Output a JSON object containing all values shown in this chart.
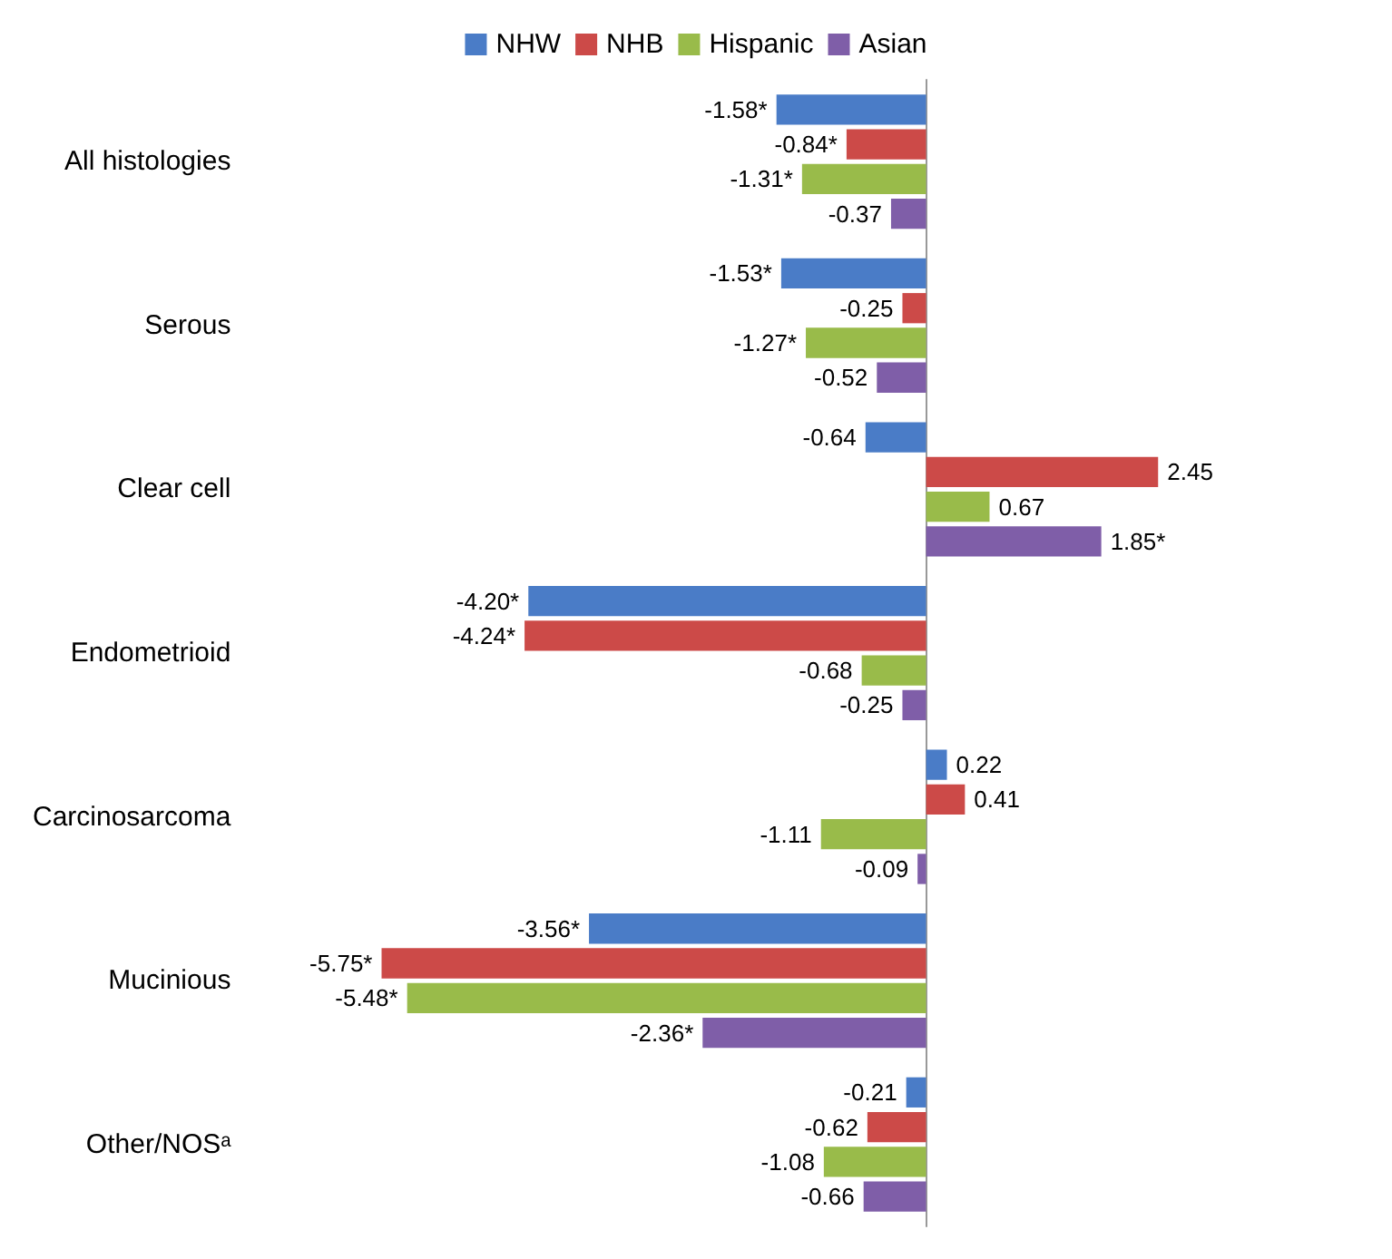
{
  "chart_data": {
    "type": "bar",
    "orientation": "horizontal",
    "legend": "top",
    "categories": [
      "All histologies",
      "Serous",
      "Clear cell",
      "Endometrioid",
      "Carcinosarcoma",
      "Mucinious",
      "Other/NOSᵃ"
    ],
    "series": [
      {
        "name": "NHW",
        "color": "#4a7cc7",
        "values": [
          -1.58,
          -1.53,
          -0.64,
          -4.2,
          0.22,
          -3.56,
          -0.21
        ],
        "value_labels": [
          "-1.58*",
          "-1.53*",
          "-0.64",
          "-4.20*",
          "0.22",
          "-3.56*",
          "-0.21"
        ]
      },
      {
        "name": "NHB",
        "color": "#cc4a48",
        "values": [
          -0.84,
          -0.25,
          2.45,
          -4.24,
          0.41,
          -5.75,
          -0.62
        ],
        "value_labels": [
          "-0.84*",
          "-0.25",
          "2.45",
          "-4.24*",
          "0.41",
          "-5.75*",
          "-0.62"
        ]
      },
      {
        "name": "Hispanic",
        "color": "#99bb4a",
        "values": [
          -1.31,
          -1.27,
          0.67,
          -0.68,
          -1.11,
          -5.48,
          -1.08
        ],
        "value_labels": [
          "-1.31*",
          "-1.27*",
          "0.67",
          "-0.68",
          "-1.11",
          "-5.48*",
          "-1.08"
        ]
      },
      {
        "name": "Asian",
        "color": "#7f5ea8",
        "values": [
          -0.37,
          -0.52,
          1.85,
          -0.25,
          -0.09,
          -2.36,
          -0.66
        ],
        "value_labels": [
          "-0.37",
          "-0.52",
          "1.85*",
          "-0.25",
          "-0.09",
          "-2.36*",
          "-0.66"
        ]
      }
    ]
  }
}
